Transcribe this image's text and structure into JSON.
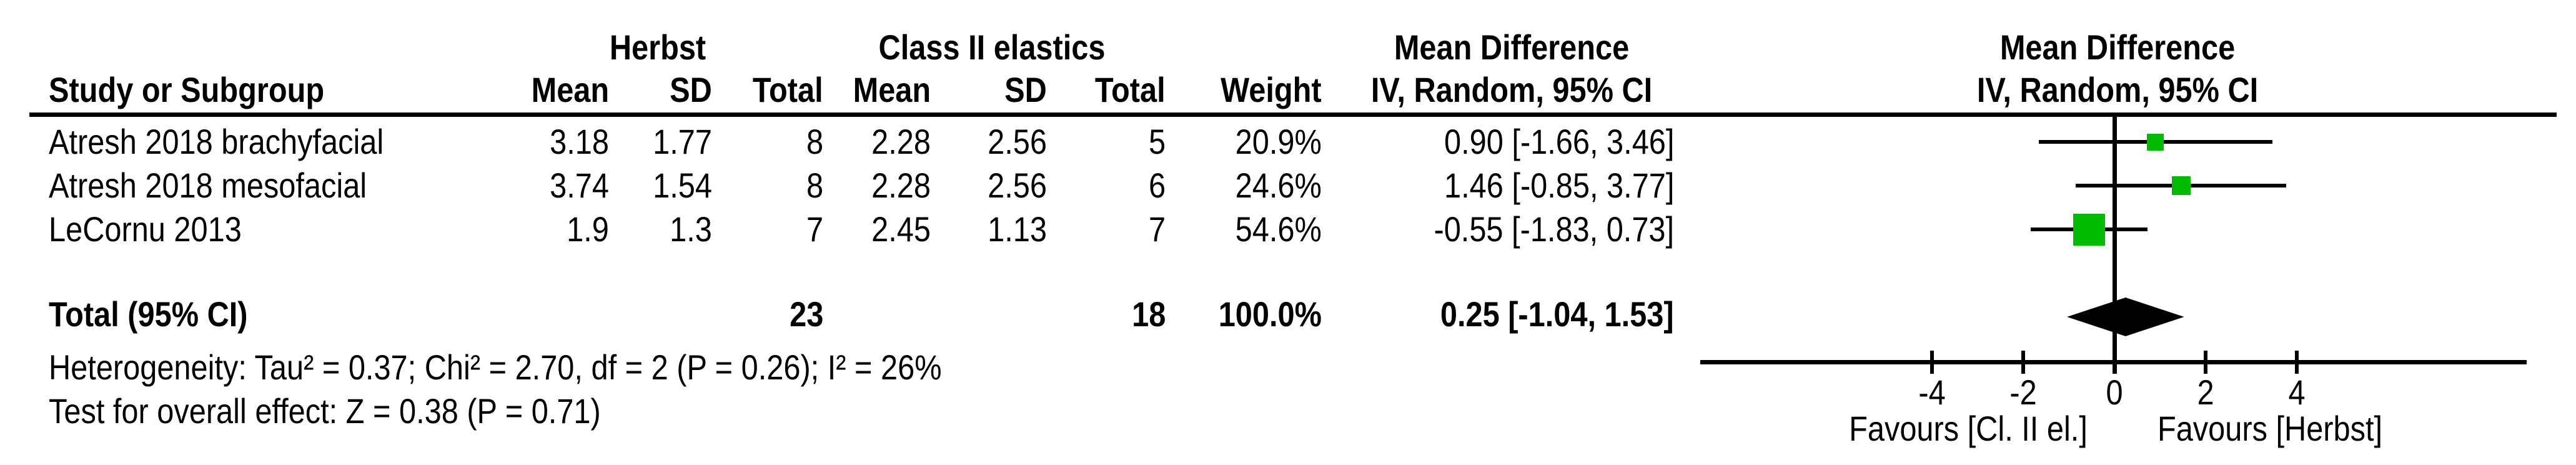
{
  "table": {
    "col_headers": {
      "study": "Study or Subgroup",
      "group1": "Herbst",
      "group2": "Class II elastics",
      "mean1": "Mean",
      "sd1": "SD",
      "total1": "Total",
      "mean2": "Mean",
      "sd2": "SD",
      "total2": "Total",
      "weight": "Weight",
      "effect_line1": "Mean Difference",
      "effect_line2": "IV, Random, 95% CI"
    },
    "plot_header": {
      "line1": "Mean Difference",
      "line2": "IV, Random, 95% CI"
    },
    "rows": [
      {
        "study": "Atresh 2018 brachyfacial",
        "mean1": "3.18",
        "sd1": "1.77",
        "total1": "8",
        "mean2": "2.28",
        "sd2": "2.56",
        "total2": "5",
        "weight": "20.9%",
        "ci": "0.90 [-1.66, 3.46]"
      },
      {
        "study": "Atresh 2018 mesofacial",
        "mean1": "3.74",
        "sd1": "1.54",
        "total1": "8",
        "mean2": "2.28",
        "sd2": "2.56",
        "total2": "6",
        "weight": "24.6%",
        "ci": "1.46 [-0.85, 3.77]"
      },
      {
        "study": "LeCornu 2013",
        "mean1": "1.9",
        "sd1": "1.3",
        "total1": "7",
        "mean2": "2.45",
        "sd2": "1.13",
        "total2": "7",
        "weight": "54.6%",
        "ci": "-0.55 [-1.83, 0.73]"
      }
    ],
    "total_row": {
      "label": "Total (95% CI)",
      "total1": "23",
      "total2": "18",
      "weight": "100.0%",
      "ci": "0.25 [-1.04, 1.53]"
    },
    "heterogeneity": "Heterogeneity: Tau² = 0.37; Chi² = 2.70, df = 2 (P = 0.26); I² = 26%",
    "overall_effect": "Test for overall effect: Z = 0.38 (P = 0.71)"
  },
  "chart_data": {
    "type": "forest",
    "effect_measure": "Mean Difference IV, Random, 95% CI",
    "group1_label": "Herbst",
    "group2_label": "Class II elastics",
    "studies": [
      {
        "name": "Atresh 2018 brachyfacial",
        "mean": 0.9,
        "ci_low": -1.66,
        "ci_high": 3.46,
        "weight_pct": 20.9,
        "n1": 8,
        "n2": 5
      },
      {
        "name": "Atresh 2018 mesofacial",
        "mean": 1.46,
        "ci_low": -0.85,
        "ci_high": 3.77,
        "weight_pct": 24.6,
        "n1": 8,
        "n2": 6
      },
      {
        "name": "LeCornu 2013",
        "mean": -0.55,
        "ci_low": -1.83,
        "ci_high": 0.73,
        "weight_pct": 54.6,
        "n1": 7,
        "n2": 7
      }
    ],
    "total": {
      "mean": 0.25,
      "ci_low": -1.04,
      "ci_high": 1.53,
      "weight_pct": 100.0,
      "n1": 23,
      "n2": 18
    },
    "axis": {
      "ticks": [
        -4,
        -2,
        0,
        2,
        4
      ],
      "xlim": [
        -9,
        9
      ],
      "grid": false
    },
    "footer_left": "Favours [Cl. II el.]",
    "footer_right": "Favours [Herbst]",
    "marker_color": "#00bb00",
    "line_color": "#000000",
    "diamond_color": "#000000"
  }
}
